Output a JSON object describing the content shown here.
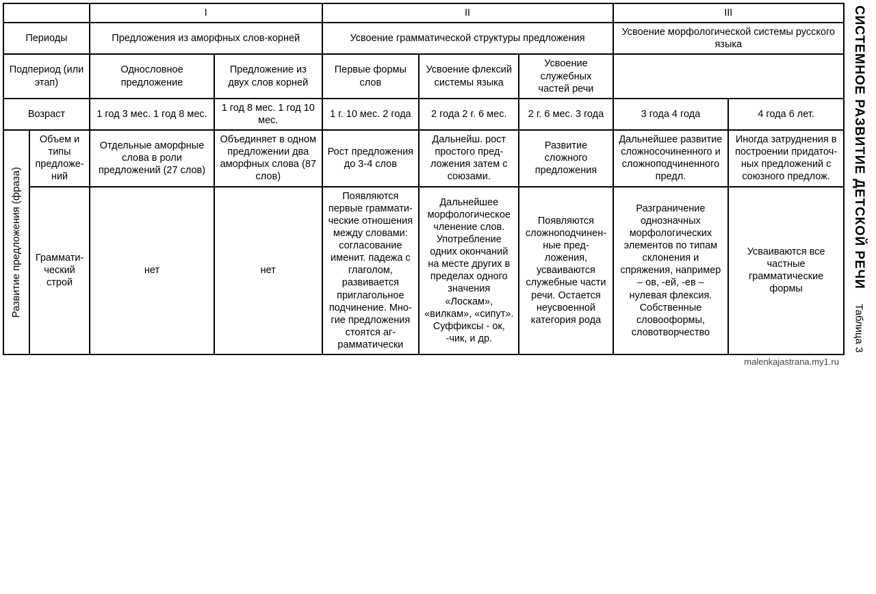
{
  "sideTitle": "СИСТЕМНОЕ РАЗВИТИЕ ДЕТСКОЙ РЕЧИ",
  "sideSub": "Таблица 3",
  "footer": "malenkajastrana.my1.ru",
  "romans": {
    "r1": "I",
    "r2": "II",
    "r3": "III"
  },
  "rowLabels": {
    "periods": "Периоды",
    "subperiod": "Подпериод (или этап)",
    "age": "Возраст",
    "volume": "Объем и типы пред­ложе­ний",
    "grammar": "Грам­мати­ческий строй",
    "devPhrase": "Развитие предложения (фраза)"
  },
  "periods": {
    "p1": "Предложения из аморфных слов-корней",
    "p2": "Усвоение грамматической структуры предложения",
    "p3": "Усвоение морфологиче­ской системы русского языка"
  },
  "subperiods": {
    "s1": "Однословное предложение",
    "s2": "Предложение из двух слов корней",
    "s3": "Первые формы слов",
    "s4": "Усвоение флексий системы языка",
    "s5": "Усвоение служебных частей речи"
  },
  "ages": {
    "a1": "1 год 3 мес. 1 год 8 мес.",
    "a2": "1 год 8 мес. 1 год 10 мес.",
    "a3": "1 г. 10 мес. 2 года",
    "a4": "2 года 2 г. 6 мес.",
    "a5": "2 г. 6 мес. 3 года",
    "a6": "3 года 4 года",
    "a7": "4 года 6 лет."
  },
  "volume": {
    "v1": "Отдельные амор­фные слова в роли предложений (27 слов)",
    "v2": "Объединяет в одном пред­ложении два аморфных слова (87 слов)",
    "v3": "Рост предложения до 3-4 слов",
    "v4": "Дальнейш. рост прос­того пред­ложения затем с союзами.",
    "v5": "Развитие сложного предложе­ния",
    "v6": "Дальнейшее развитие сложно­сочиненного и сложноподчи­ненного предл.",
    "v7": "Иногда затруд­нения в построе­нии придаточ­ных предло­жений с союз­ного предлож."
  },
  "grammar": {
    "g1": "нет",
    "g2": "нет",
    "g3": "Появляются первые граммати­ческие отно­шения меж­ду словами: согласова­ние именит. падежа с глаголом, развивается приглаголь­ное подчи­нение. Мно­гие предло­жения стоятся аг­рамматически",
    "g4": "Дальнейшее морфологи­ческое членение слов. Употребление одних окончаний на месте других в пределах одного значения «Лоскам», «вилкам», «сипут». Суффиксы - ок, -чик, и др.",
    "g5": "Появляют­ся сложно­подчинен­ные пред­ложения, усваивают­ся служеб­ные части речи. Ос­тается не­усвоенной категория рода",
    "g6": "Разграничение однозначных морфологиче­ских элементов по типам склонения и спряжения, например – ов, -ей, -ев – нулевая флексия. Собственные словооформы, словотворче­ство",
    "g7": "Усваиваются все частные грамматические формы"
  }
}
